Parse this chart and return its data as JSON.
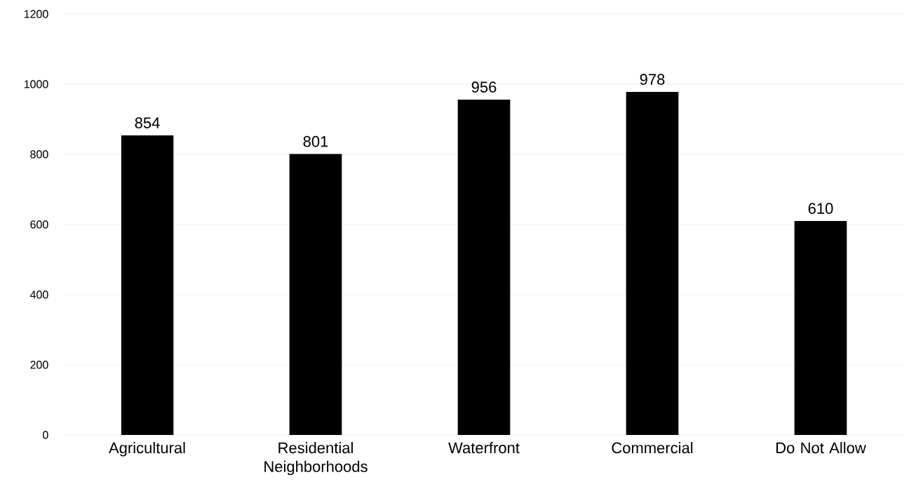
{
  "chart_data": {
    "type": "bar",
    "categories": [
      "Agricultural",
      "Residential Neighborhoods",
      "Waterfront",
      "Commercial",
      "Do Not Allow"
    ],
    "values": [
      854,
      801,
      956,
      978,
      610
    ],
    "color": "#000000",
    "ylim": [
      0,
      1200
    ],
    "yticks": [
      0,
      200,
      400,
      600,
      800,
      1000,
      1200
    ],
    "grid": "y",
    "data_labels": true
  }
}
